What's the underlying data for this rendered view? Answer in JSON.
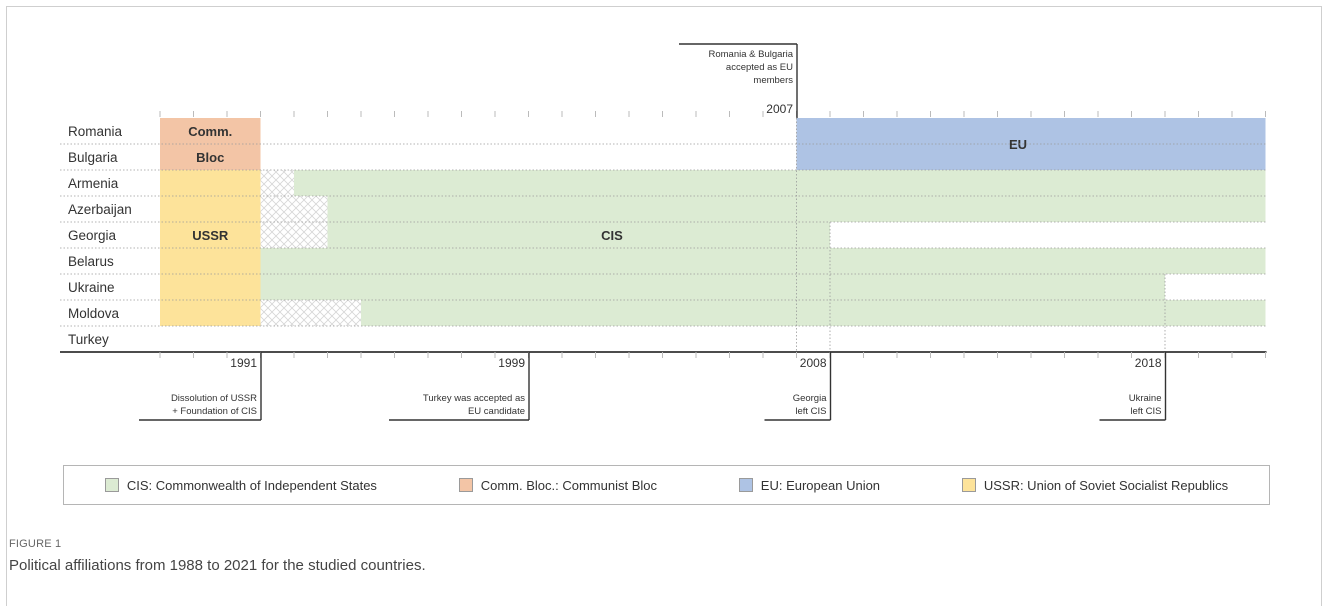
{
  "figure": {
    "label": "FIGURE 1",
    "caption": "Political affiliations from 1988 to 2021 for the studied countries."
  },
  "colors": {
    "CIS": "#dcebd3",
    "CommBloc": "#f3c5a6",
    "EU": "#aec3e4",
    "USSR": "#fde39a"
  },
  "timeline": {
    "countries": [
      "Romania",
      "Bulgaria",
      "Armenia",
      "Azerbaijan",
      "Georgia",
      "Belarus",
      "Ukraine",
      "Moldova",
      "Turkey"
    ],
    "bars": [
      {
        "label": "Comm.",
        "group": "CommBloc",
        "start": 1988,
        "end": 1991,
        "rows": [
          0,
          0
        ]
      },
      {
        "label": "Bloc",
        "group": "CommBloc",
        "start": 1988,
        "end": 1991,
        "rows": [
          1,
          1
        ]
      },
      {
        "label": "USSR",
        "group": "USSR",
        "start": 1988,
        "end": 1991,
        "rows": [
          2,
          7
        ]
      },
      {
        "label": "EU",
        "group": "EU",
        "start": 2007,
        "end": 2021,
        "rows": [
          0,
          1
        ]
      },
      {
        "label": "CIS",
        "group": "CIS",
        "start": 1992,
        "end": 2021,
        "rows": [
          2,
          2
        ]
      },
      {
        "label": "",
        "group": "CIS",
        "start": 1993,
        "end": 2021,
        "rows": [
          3,
          3
        ]
      },
      {
        "label": "",
        "group": "CIS",
        "start": 1993,
        "end": 2008,
        "rows": [
          4,
          4
        ]
      },
      {
        "label": "",
        "group": "CIS",
        "start": 1991,
        "end": 2021,
        "rows": [
          5,
          5
        ]
      },
      {
        "label": "",
        "group": "CIS",
        "start": 1991,
        "end": 2018,
        "rows": [
          6,
          6
        ]
      },
      {
        "label": "",
        "group": "CIS",
        "start": 1994,
        "end": 2021,
        "rows": [
          7,
          7
        ]
      }
    ],
    "hatched": [
      {
        "start": 1991,
        "end": 1992,
        "row": 2
      },
      {
        "start": 1991,
        "end": 1993,
        "row": 3
      },
      {
        "start": 1991,
        "end": 1993,
        "row": 4
      },
      {
        "start": 1991,
        "end": 1994,
        "row": 7
      }
    ],
    "top_event": {
      "year": "2007",
      "text": [
        "Romania & Bulgaria",
        "accepted as EU",
        "members"
      ]
    },
    "bottom_events": [
      {
        "year": "1991",
        "text": [
          "Dissolution of USSR",
          "+ Foundation of CIS"
        ]
      },
      {
        "year": "1999",
        "text": [
          "Turkey was accepted as",
          "EU candidate"
        ]
      },
      {
        "year": "2008",
        "text": [
          "Georgia",
          "left CIS"
        ]
      },
      {
        "year": "2018",
        "text": [
          "Ukraine",
          "left CIS"
        ]
      }
    ]
  },
  "legend": {
    "items": [
      {
        "swatch": "CIS",
        "label": "CIS: Commonwealth of Independent States"
      },
      {
        "swatch": "CommBloc",
        "label": "Comm. Bloc.: Communist Bloc"
      },
      {
        "swatch": "EU",
        "label": "EU: European Union"
      },
      {
        "swatch": "USSR",
        "label": "USSR: Union of Soviet Socialist Republics"
      }
    ]
  }
}
